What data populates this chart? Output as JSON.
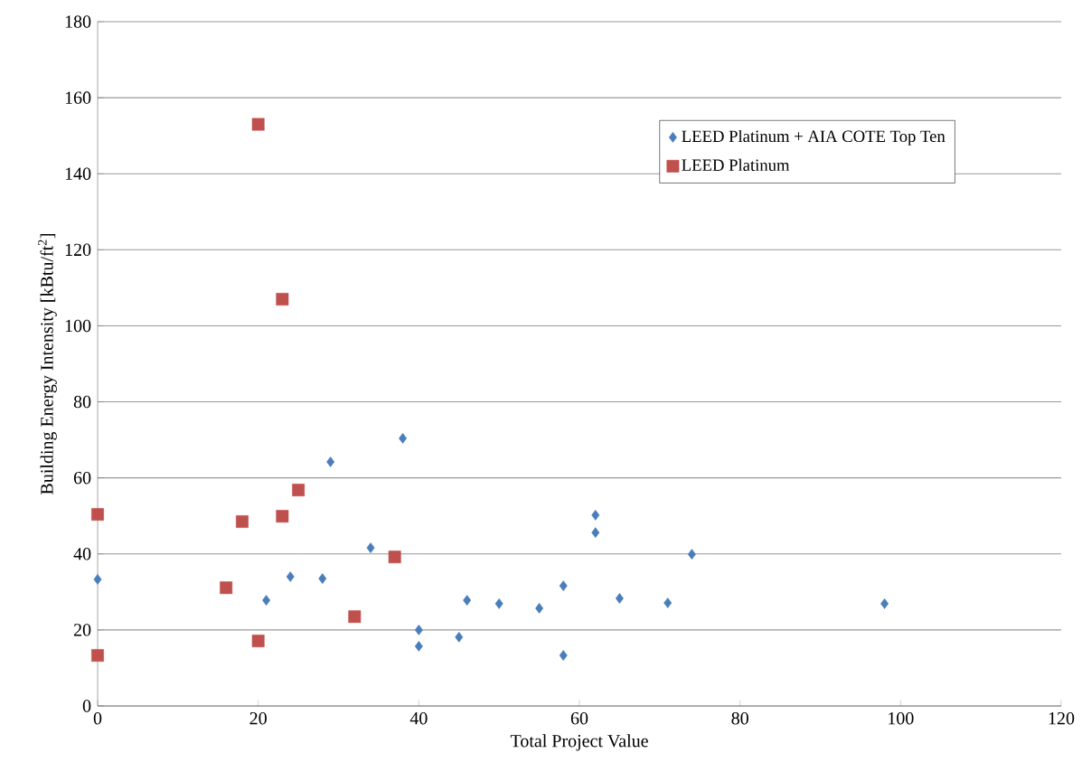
{
  "chart_data": {
    "type": "scatter",
    "xlabel": "Total Project Value",
    "ylabel": "Building Energy Intensity [kBtu/ft$^{2}$]",
    "xlim": [
      0,
      120
    ],
    "xticks": [
      0,
      20,
      40,
      60,
      80,
      100,
      120
    ],
    "ylim": [
      0,
      180
    ],
    "yticks": [
      0,
      20,
      40,
      60,
      80,
      100,
      120,
      140,
      160,
      180
    ],
    "grid": "y",
    "legend": "top right",
    "series": [
      {
        "name": "LEED Platinum + AIA COTE Top Ten",
        "color": "#4a7ebb",
        "marker": "diamond",
        "x": [
          0,
          21,
          24,
          28,
          29,
          34,
          38,
          40,
          40,
          45,
          46,
          50,
          55,
          58,
          58,
          62,
          62,
          65,
          71,
          74,
          98
        ],
        "values": [
          33.3,
          27.8,
          34.0,
          33.5,
          64.2,
          41.6,
          70.4,
          20.0,
          15.7,
          18.1,
          27.8,
          26.9,
          25.7,
          31.6,
          13.3,
          50.2,
          45.6,
          28.3,
          27.1,
          39.9,
          26.9
        ]
      },
      {
        "name": "LEED Platinum",
        "color": "#c0504d",
        "marker": "square",
        "x": [
          0,
          0,
          16,
          18,
          20,
          20,
          23,
          23,
          25,
          32,
          37
        ],
        "values": [
          50.4,
          13.3,
          31.1,
          48.5,
          153,
          17.1,
          107,
          49.9,
          56.8,
          23.5,
          39.2
        ]
      }
    ]
  }
}
